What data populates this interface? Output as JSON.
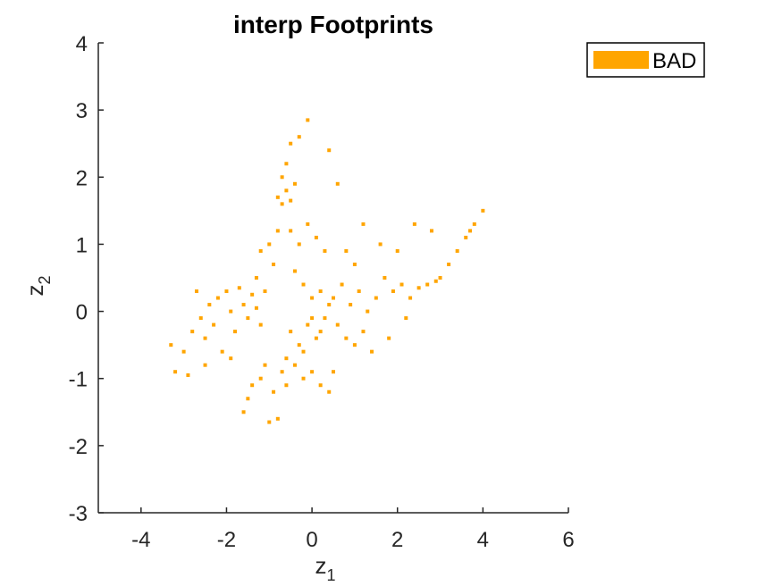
{
  "chart_data": {
    "type": "scatter",
    "title": "interp Footprints",
    "xlabel": {
      "base": "z",
      "sub": "1"
    },
    "ylabel": {
      "base": "z",
      "sub": "2"
    },
    "xlim": [
      -5,
      6
    ],
    "ylim": [
      -3,
      4
    ],
    "xticks": [
      -4,
      -2,
      0,
      2,
      4,
      6
    ],
    "yticks": [
      -3,
      -2,
      -1,
      0,
      1,
      2,
      3,
      4
    ],
    "grid": false,
    "legend": {
      "position": "top-right-outside",
      "entries": [
        "BAD"
      ]
    },
    "series": [
      {
        "name": "BAD",
        "color": "#ffa500",
        "points": [
          [
            -3.3,
            -0.5
          ],
          [
            -3.2,
            -0.9
          ],
          [
            -3.0,
            -0.6
          ],
          [
            -2.9,
            -0.95
          ],
          [
            -2.8,
            -0.3
          ],
          [
            -2.6,
            -0.1
          ],
          [
            -2.5,
            -0.4
          ],
          [
            -2.4,
            0.1
          ],
          [
            -2.3,
            -0.2
          ],
          [
            -2.2,
            0.2
          ],
          [
            -2.0,
            0.3
          ],
          [
            -1.9,
            0.0
          ],
          [
            -1.8,
            -0.3
          ],
          [
            -1.7,
            0.35
          ],
          [
            -1.6,
            0.1
          ],
          [
            -1.5,
            -0.1
          ],
          [
            -1.4,
            0.25
          ],
          [
            -1.3,
            0.05
          ],
          [
            -1.2,
            -0.2
          ],
          [
            -1.1,
            0.3
          ],
          [
            -1.6,
            -1.5
          ],
          [
            -1.5,
            -1.3
          ],
          [
            -1.4,
            -1.1
          ],
          [
            -1.2,
            -1.0
          ],
          [
            -1.1,
            -0.8
          ],
          [
            -0.9,
            -1.2
          ],
          [
            -0.8,
            -1.6
          ],
          [
            -1.0,
            -1.65
          ],
          [
            -0.7,
            -0.9
          ],
          [
            -0.6,
            -1.1
          ],
          [
            -0.8,
            1.7
          ],
          [
            -0.7,
            1.6
          ],
          [
            -0.6,
            1.8
          ],
          [
            -0.5,
            1.65
          ],
          [
            -0.7,
            2.0
          ],
          [
            -0.6,
            2.2
          ],
          [
            -0.5,
            2.5
          ],
          [
            -0.3,
            2.6
          ],
          [
            -0.1,
            2.85
          ],
          [
            -0.4,
            1.9
          ],
          [
            -0.5,
            1.2
          ],
          [
            -0.3,
            1.0
          ],
          [
            -0.1,
            1.3
          ],
          [
            0.1,
            1.1
          ],
          [
            0.3,
            0.9
          ],
          [
            -0.4,
            0.6
          ],
          [
            -0.2,
            0.4
          ],
          [
            0.0,
            0.2
          ],
          [
            0.2,
            0.3
          ],
          [
            0.4,
            0.1
          ],
          [
            -0.5,
            -0.3
          ],
          [
            -0.3,
            -0.5
          ],
          [
            -0.1,
            -0.2
          ],
          [
            0.1,
            -0.4
          ],
          [
            0.3,
            -0.1
          ],
          [
            -0.6,
            -0.7
          ],
          [
            -0.4,
            -0.8
          ],
          [
            -0.2,
            -0.6
          ],
          [
            0.0,
            -0.1
          ],
          [
            0.2,
            -0.3
          ],
          [
            0.5,
            0.2
          ],
          [
            0.7,
            0.4
          ],
          [
            0.9,
            0.1
          ],
          [
            1.1,
            0.3
          ],
          [
            1.3,
            0.0
          ],
          [
            1.5,
            0.2
          ],
          [
            1.7,
            0.5
          ],
          [
            1.9,
            0.3
          ],
          [
            2.1,
            0.4
          ],
          [
            2.3,
            0.2
          ],
          [
            2.5,
            0.35
          ],
          [
            2.7,
            0.4
          ],
          [
            2.9,
            0.45
          ],
          [
            3.0,
            0.5
          ],
          [
            3.2,
            0.7
          ],
          [
            3.4,
            0.9
          ],
          [
            3.6,
            1.1
          ],
          [
            3.8,
            1.3
          ],
          [
            4.0,
            1.5
          ],
          [
            3.7,
            1.2
          ],
          [
            0.6,
            -0.2
          ],
          [
            0.8,
            -0.4
          ],
          [
            1.0,
            -0.5
          ],
          [
            1.2,
            -0.3
          ],
          [
            1.4,
            -0.6
          ],
          [
            0.5,
            -0.9
          ],
          [
            0.2,
            -1.1
          ],
          [
            0.4,
            -1.2
          ],
          [
            -0.2,
            -1.0
          ],
          [
            0.0,
            -0.9
          ],
          [
            0.6,
            1.9
          ],
          [
            0.4,
            2.4
          ],
          [
            1.2,
            1.3
          ],
          [
            1.6,
            1.0
          ],
          [
            2.0,
            0.9
          ],
          [
            2.4,
            1.3
          ],
          [
            2.8,
            1.2
          ],
          [
            1.8,
            -0.4
          ],
          [
            2.2,
            -0.1
          ],
          [
            1.0,
            0.7
          ],
          [
            -2.7,
            0.3
          ],
          [
            -2.1,
            -0.6
          ],
          [
            -1.9,
            -0.7
          ],
          [
            -2.5,
            -0.8
          ],
          [
            -1.3,
            0.5
          ],
          [
            -0.9,
            0.7
          ],
          [
            -0.8,
            1.2
          ],
          [
            -1.0,
            1.0
          ],
          [
            -1.2,
            0.9
          ],
          [
            0.8,
            0.9
          ]
        ]
      }
    ]
  }
}
